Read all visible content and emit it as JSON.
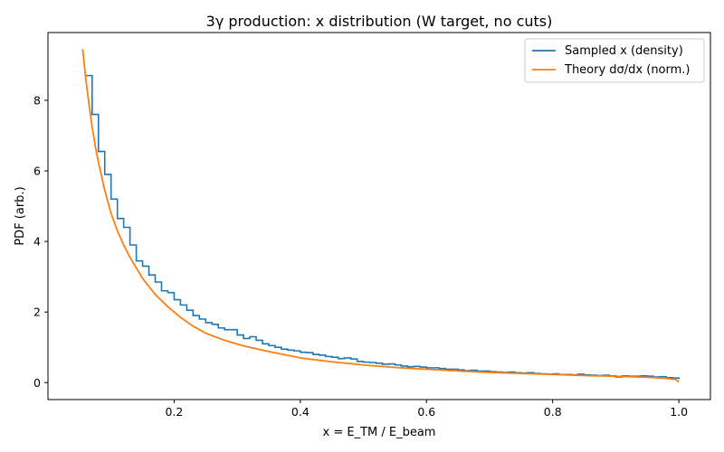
{
  "chart_data": {
    "type": "line",
    "title": "3γ production: x distribution (W target, no cuts)",
    "xlabel": "x = E_TM / E_beam",
    "ylabel": "PDF (arb.)",
    "xlim": [
      -0.0,
      1.05
    ],
    "ylim": [
      -0.48,
      9.92
    ],
    "x_ticks": [
      0.2,
      0.4,
      0.6,
      0.8,
      1.0
    ],
    "x_tick_labels": [
      "0.2",
      "0.4",
      "0.6",
      "0.8",
      "1.0"
    ],
    "y_ticks": [
      0,
      2,
      4,
      6,
      8
    ],
    "y_tick_labels": [
      "0",
      "2",
      "4",
      "6",
      "8"
    ],
    "grid": false,
    "legend_position": "top-right",
    "series": [
      {
        "name": "Sampled x (density)",
        "style": "step histogram",
        "color": "#1f77b4",
        "bin_edges": [
          0.06,
          0.07,
          0.08,
          0.09,
          0.1,
          0.11,
          0.12,
          0.13,
          0.14,
          0.15,
          0.16,
          0.17,
          0.18,
          0.19,
          0.2,
          0.21,
          0.22,
          0.23,
          0.24,
          0.25,
          0.26,
          0.27,
          0.28,
          0.29,
          0.3,
          0.31,
          0.32,
          0.33,
          0.34,
          0.35,
          0.36,
          0.37,
          0.38,
          0.39,
          0.4,
          0.41,
          0.42,
          0.43,
          0.44,
          0.45,
          0.46,
          0.47,
          0.48,
          0.49,
          0.5,
          0.51,
          0.52,
          0.53,
          0.54,
          0.55,
          0.56,
          0.57,
          0.58,
          0.59,
          0.6,
          0.61,
          0.62,
          0.63,
          0.64,
          0.65,
          0.66,
          0.67,
          0.68,
          0.69,
          0.7,
          0.71,
          0.72,
          0.73,
          0.74,
          0.75,
          0.76,
          0.77,
          0.78,
          0.79,
          0.8,
          0.81,
          0.82,
          0.83,
          0.84,
          0.85,
          0.86,
          0.87,
          0.88,
          0.89,
          0.9,
          0.91,
          0.92,
          0.93,
          0.94,
          0.95,
          0.96,
          0.97,
          0.98,
          0.99,
          1.0
        ],
        "values": [
          8.7,
          7.6,
          6.55,
          5.9,
          5.2,
          4.65,
          4.4,
          3.9,
          3.45,
          3.3,
          3.05,
          2.85,
          2.6,
          2.55,
          2.35,
          2.2,
          2.05,
          1.9,
          1.8,
          1.7,
          1.65,
          1.55,
          1.5,
          1.5,
          1.35,
          1.25,
          1.3,
          1.2,
          1.1,
          1.05,
          1.0,
          0.95,
          0.92,
          0.9,
          0.86,
          0.85,
          0.8,
          0.78,
          0.74,
          0.72,
          0.68,
          0.7,
          0.67,
          0.6,
          0.58,
          0.57,
          0.55,
          0.52,
          0.53,
          0.5,
          0.47,
          0.45,
          0.46,
          0.44,
          0.42,
          0.42,
          0.4,
          0.38,
          0.38,
          0.36,
          0.34,
          0.35,
          0.33,
          0.33,
          0.31,
          0.3,
          0.29,
          0.3,
          0.28,
          0.27,
          0.28,
          0.26,
          0.25,
          0.24,
          0.25,
          0.23,
          0.23,
          0.22,
          0.24,
          0.22,
          0.21,
          0.2,
          0.21,
          0.19,
          0.16,
          0.19,
          0.18,
          0.18,
          0.19,
          0.18,
          0.16,
          0.17,
          0.14,
          0.13,
          0.1
        ]
      },
      {
        "name": "Theory dσ/dx (norm.)",
        "style": "line",
        "color": "#ff7f0e",
        "x": [
          0.055,
          0.06,
          0.065,
          0.07,
          0.075,
          0.08,
          0.09,
          0.1,
          0.11,
          0.12,
          0.13,
          0.14,
          0.15,
          0.17,
          0.19,
          0.21,
          0.23,
          0.25,
          0.28,
          0.31,
          0.35,
          0.4,
          0.45,
          0.5,
          0.55,
          0.6,
          0.65,
          0.7,
          0.75,
          0.8,
          0.85,
          0.9,
          0.95,
          0.98,
          0.995,
          1.0
        ],
        "y": [
          9.45,
          8.6,
          7.9,
          7.25,
          6.7,
          6.25,
          5.45,
          4.8,
          4.3,
          3.9,
          3.55,
          3.25,
          2.95,
          2.5,
          2.15,
          1.85,
          1.6,
          1.4,
          1.2,
          1.04,
          0.88,
          0.7,
          0.59,
          0.5,
          0.43,
          0.38,
          0.33,
          0.29,
          0.26,
          0.23,
          0.2,
          0.18,
          0.15,
          0.12,
          0.09,
          0.02
        ]
      }
    ]
  }
}
